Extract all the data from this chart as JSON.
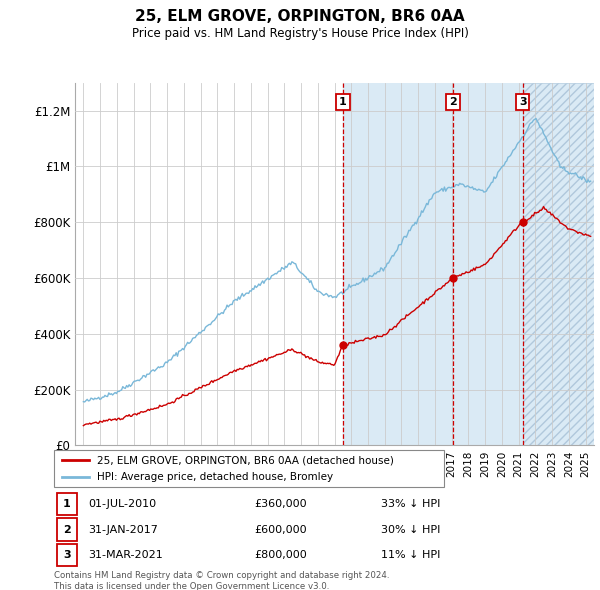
{
  "title": "25, ELM GROVE, ORPINGTON, BR6 0AA",
  "subtitle": "Price paid vs. HM Land Registry's House Price Index (HPI)",
  "ylim": [
    0,
    1300000
  ],
  "yticks": [
    0,
    200000,
    400000,
    600000,
    800000,
    1000000,
    1200000
  ],
  "ytick_labels": [
    "£0",
    "£200K",
    "£400K",
    "£600K",
    "£800K",
    "£1M",
    "£1.2M"
  ],
  "xlim_start": 1994.5,
  "xlim_end": 2025.5,
  "sale_dates": [
    2010.5,
    2017.08,
    2021.25
  ],
  "sale_prices": [
    360000,
    600000,
    800000
  ],
  "sale_labels": [
    "1",
    "2",
    "3"
  ],
  "sale_info": [
    {
      "label": "1",
      "date": "01-JUL-2010",
      "price": "£360,000",
      "pct": "33% ↓ HPI"
    },
    {
      "label": "2",
      "date": "31-JAN-2017",
      "price": "£600,000",
      "pct": "30% ↓ HPI"
    },
    {
      "label": "3",
      "date": "31-MAR-2021",
      "price": "£800,000",
      "pct": "11% ↓ HPI"
    }
  ],
  "legend_entries": [
    "25, ELM GROVE, ORPINGTON, BR6 0AA (detached house)",
    "HPI: Average price, detached house, Bromley"
  ],
  "footer": "Contains HM Land Registry data © Crown copyright and database right 2024.\nThis data is licensed under the Open Government Licence v3.0.",
  "hpi_color": "#7ab8d9",
  "sale_color": "#cc0000",
  "hpi_fill_color": "#daeaf5",
  "hatch_fill_color": "#cddfe8",
  "grid_color": "#cccccc"
}
